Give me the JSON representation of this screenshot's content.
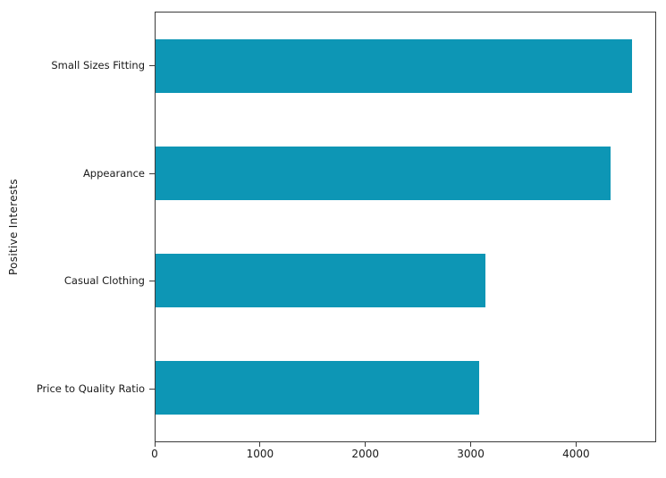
{
  "figure": {
    "background": "#ffffff",
    "spine_color": "#3a3a3a",
    "text_color": "#1a1a1a"
  },
  "chart_data": {
    "type": "bar",
    "orientation": "horizontal",
    "title": "",
    "xlabel": "",
    "ylabel": "Positive Interests",
    "categories": [
      "Small Sizes Fitting",
      "Appearance",
      "Casual Clothing",
      "Price to Quality Ratio"
    ],
    "values": [
      4540,
      4330,
      3140,
      3080
    ],
    "x_ticks": [
      0,
      1000,
      2000,
      3000,
      4000
    ],
    "xlim": [
      0,
      4760
    ],
    "bar_color": "#0d96b5",
    "grid": false,
    "legend": "none"
  }
}
